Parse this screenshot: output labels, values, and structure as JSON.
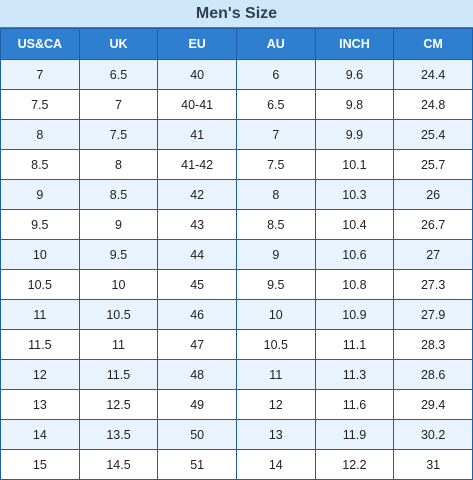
{
  "title": "Men's Size",
  "colors": {
    "header_bg": "#2f7fd0",
    "title_bg": "#cfe7fb",
    "row_alt_bg": "#e8f3fd",
    "border": "#1f5fa5"
  },
  "headers": [
    "US&CA",
    "UK",
    "EU",
    "AU",
    "INCH",
    "CM"
  ],
  "rows": [
    [
      "7",
      "6.5",
      "40",
      "6",
      "9.6",
      "24.4"
    ],
    [
      "7.5",
      "7",
      "40-41",
      "6.5",
      "9.8",
      "24.8"
    ],
    [
      "8",
      "7.5",
      "41",
      "7",
      "9.9",
      "25.4"
    ],
    [
      "8.5",
      "8",
      "41-42",
      "7.5",
      "10.1",
      "25.7"
    ],
    [
      "9",
      "8.5",
      "42",
      "8",
      "10.3",
      "26"
    ],
    [
      "9.5",
      "9",
      "43",
      "8.5",
      "10.4",
      "26.7"
    ],
    [
      "10",
      "9.5",
      "44",
      "9",
      "10.6",
      "27"
    ],
    [
      "10.5",
      "10",
      "45",
      "9.5",
      "10.8",
      "27.3"
    ],
    [
      "11",
      "10.5",
      "46",
      "10",
      "10.9",
      "27.9"
    ],
    [
      "11.5",
      "11",
      "47",
      "10.5",
      "11.1",
      "28.3"
    ],
    [
      "12",
      "11.5",
      "48",
      "11",
      "11.3",
      "28.6"
    ],
    [
      "13",
      "12.5",
      "49",
      "12",
      "11.6",
      "29.4"
    ],
    [
      "14",
      "13.5",
      "50",
      "13",
      "11.9",
      "30.2"
    ],
    [
      "15",
      "14.5",
      "51",
      "14",
      "12.2",
      "31"
    ]
  ]
}
